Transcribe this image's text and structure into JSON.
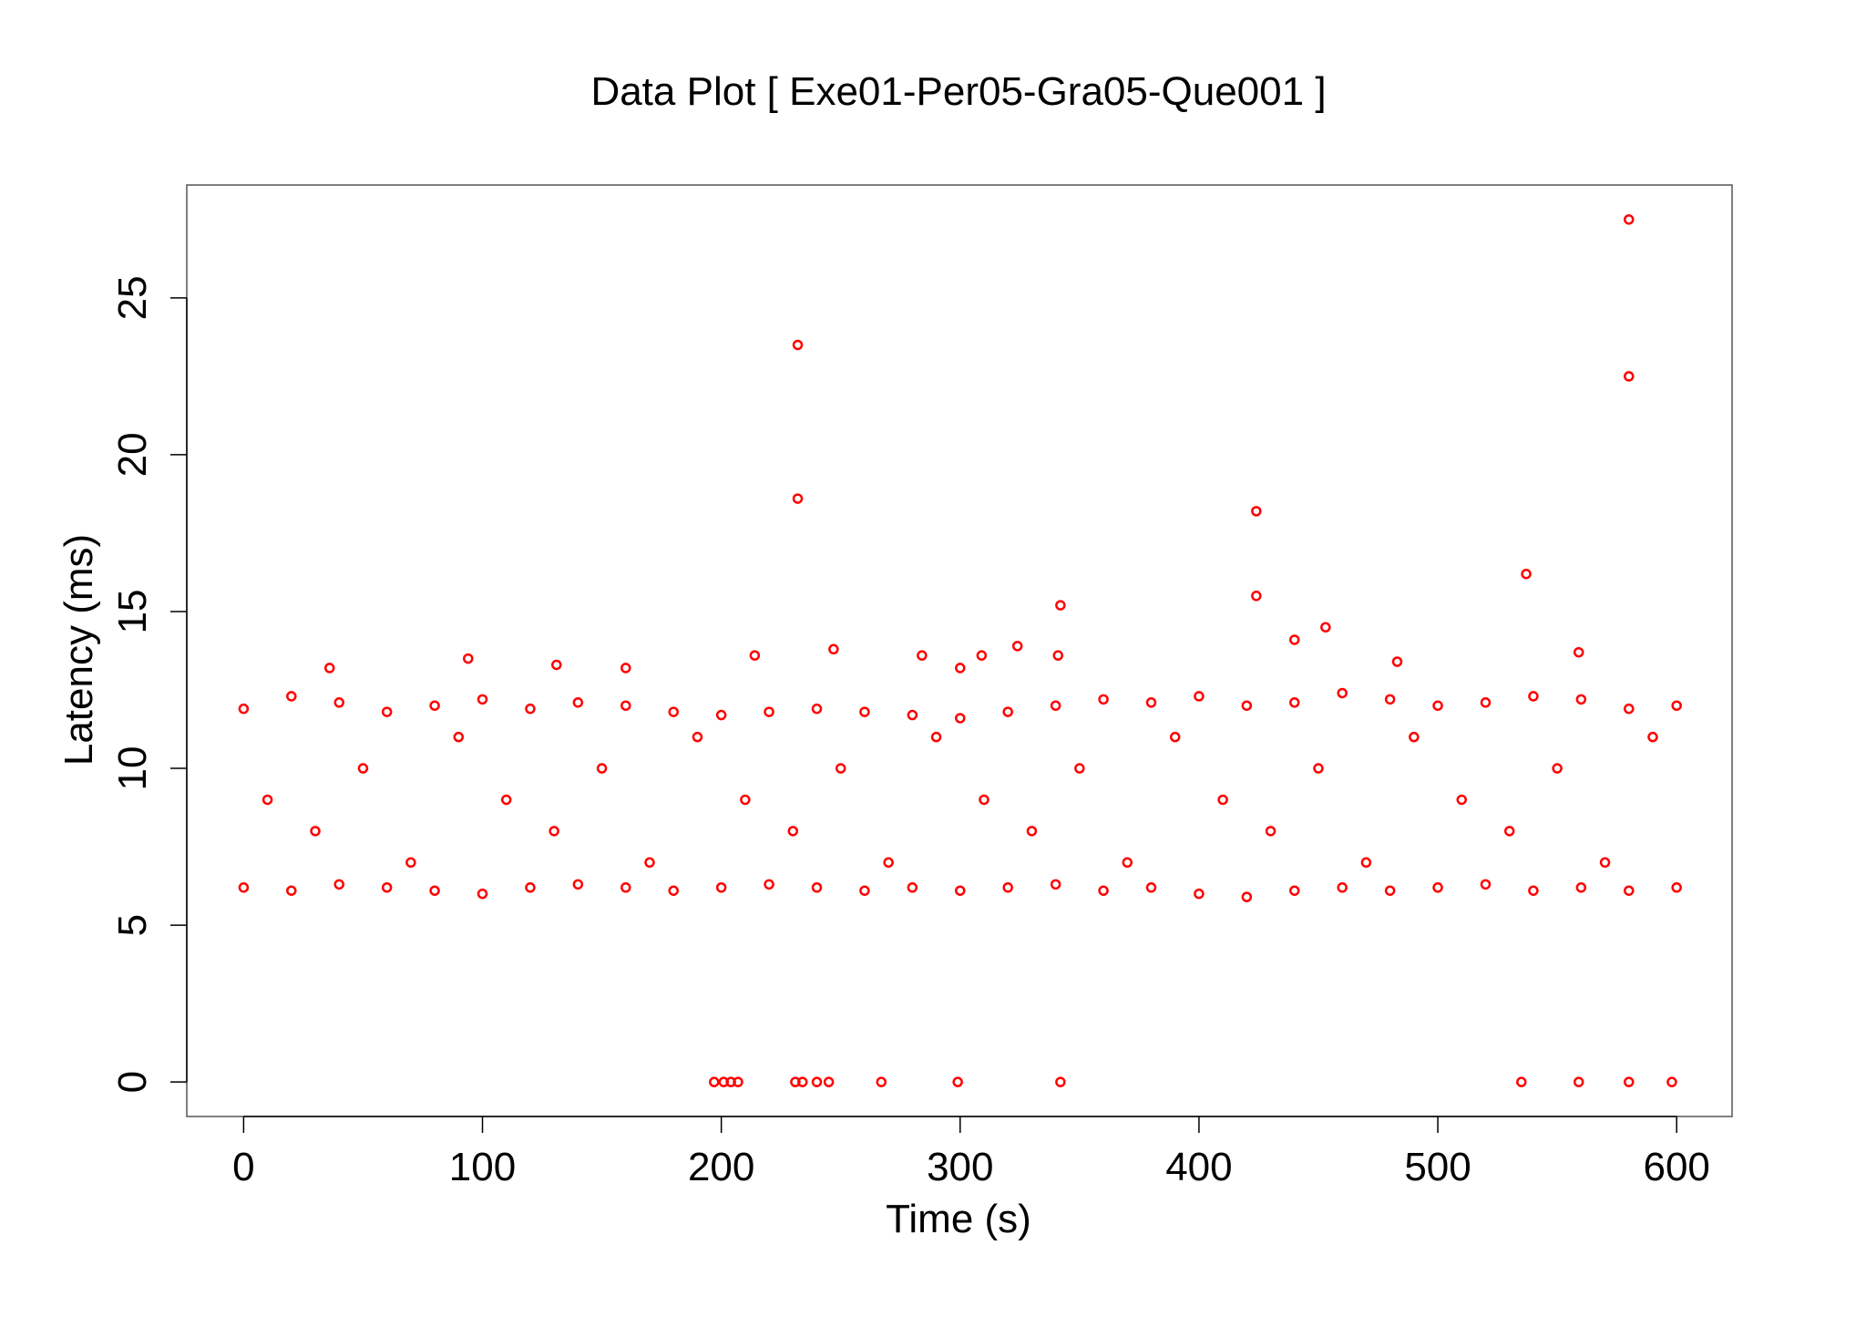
{
  "chart_data": {
    "type": "scatter",
    "title": "Data Plot [ Exe01-Per05-Gra05-Que001 ]",
    "x_label": "Time (s)",
    "y_label": "Latency (ms)",
    "color": "#ff0000",
    "xlim": [
      -23.8,
      623.2
    ],
    "ylim": [
      -1.1,
      28.6
    ],
    "xticks": [
      0,
      100,
      200,
      300,
      400,
      500,
      600
    ],
    "yticks": [
      0,
      5,
      10,
      15,
      20,
      25
    ],
    "x": [
      232,
      232,
      580,
      580,
      424,
      424,
      537,
      342,
      440,
      453,
      247,
      284,
      309,
      324,
      341,
      214,
      94,
      131,
      36,
      160,
      483,
      559,
      300,
      197,
      201,
      204,
      207,
      231,
      234,
      240,
      245,
      267,
      299,
      342,
      535,
      559,
      580,
      598,
      0,
      20,
      40,
      60,
      80,
      100,
      120,
      140,
      160,
      180,
      200,
      220,
      240,
      260,
      280,
      300,
      320,
      340,
      360,
      380,
      400,
      420,
      440,
      460,
      480,
      500,
      520,
      540,
      560,
      580,
      600,
      0,
      20,
      40,
      60,
      80,
      100,
      120,
      140,
      160,
      180,
      200,
      220,
      240,
      260,
      280,
      300,
      320,
      340,
      360,
      380,
      400,
      420,
      440,
      460,
      480,
      500,
      520,
      540,
      560,
      580,
      600,
      10,
      30,
      50,
      70,
      90,
      110,
      130,
      150,
      170,
      190,
      210,
      230,
      250,
      270,
      290,
      310,
      330,
      350,
      370,
      390,
      410,
      430,
      450,
      470,
      490,
      510,
      530,
      550,
      570,
      590
    ],
    "values": [
      23.5,
      18.6,
      27.5,
      22.5,
      18.2,
      15.5,
      16.2,
      15.2,
      14.1,
      14.5,
      13.8,
      13.6,
      13.6,
      13.9,
      13.6,
      13.6,
      13.5,
      13.3,
      13.2,
      13.2,
      13.4,
      13.7,
      13.2,
      0,
      0,
      0,
      0,
      0,
      0,
      0,
      0,
      0,
      0,
      0,
      0,
      0,
      0,
      0,
      11.9,
      12.3,
      12.1,
      11.8,
      12.0,
      12.2,
      11.9,
      12.1,
      12.0,
      11.8,
      11.7,
      11.8,
      11.9,
      11.8,
      11.7,
      11.6,
      11.8,
      12.0,
      12.2,
      12.1,
      12.3,
      12.0,
      12.1,
      12.4,
      12.2,
      12.0,
      12.1,
      12.3,
      12.2,
      11.9,
      12.0,
      6.2,
      6.1,
      6.3,
      6.2,
      6.1,
      6.0,
      6.2,
      6.3,
      6.2,
      6.1,
      6.2,
      6.3,
      6.2,
      6.1,
      6.2,
      6.1,
      6.2,
      6.3,
      6.1,
      6.2,
      6.0,
      5.9,
      6.1,
      6.2,
      6.1,
      6.2,
      6.3,
      6.1,
      6.2,
      6.1,
      6.2,
      9,
      8,
      10,
      7,
      11,
      9,
      8,
      10,
      7,
      11,
      9,
      8,
      10,
      7,
      11,
      9,
      8,
      10,
      7,
      11,
      9,
      8,
      10,
      7,
      11,
      9,
      8,
      10,
      7,
      11
    ]
  }
}
